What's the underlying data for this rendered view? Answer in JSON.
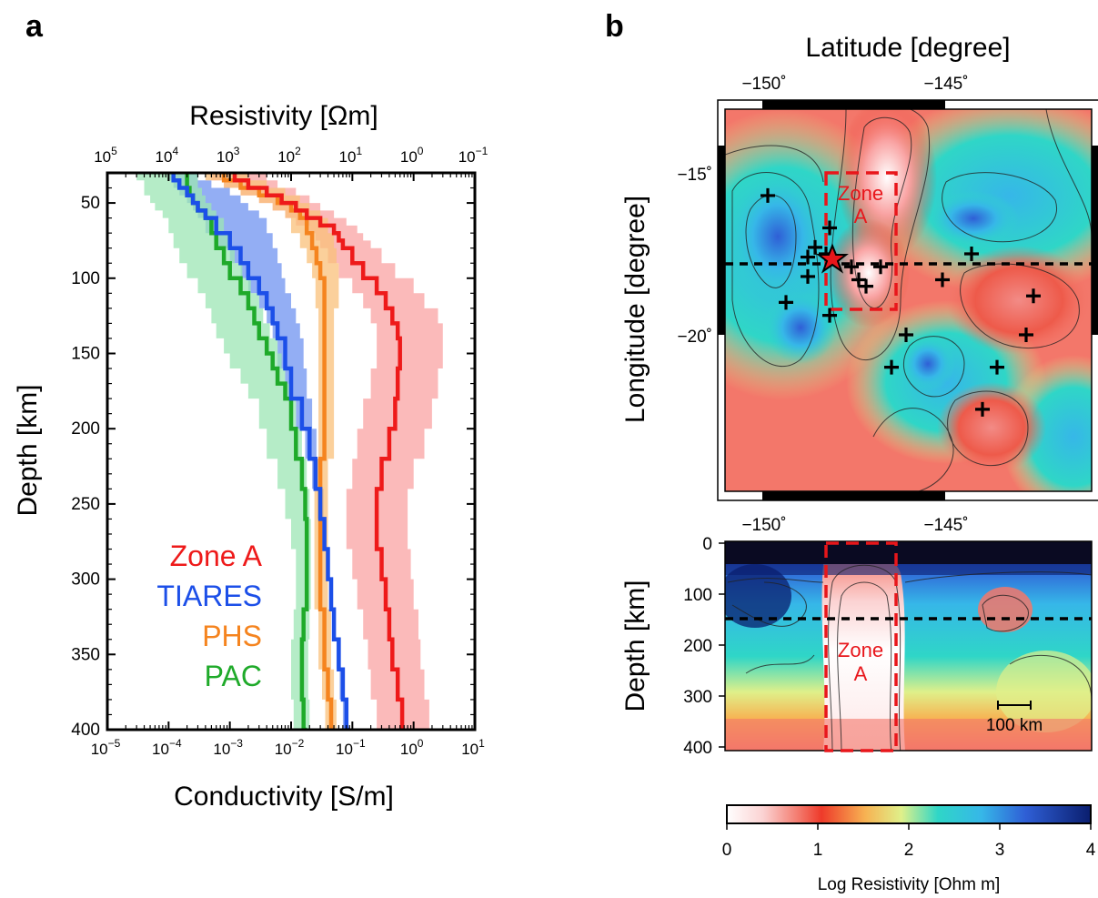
{
  "panels": {
    "a": "a",
    "b": "b"
  },
  "chart_data": [
    {
      "type": "line",
      "panel": "a",
      "xlabel_top": "Resistivity [Ωm]",
      "xlabel_bottom": "Conductivity [S/m]",
      "ylabel": "Depth [km]",
      "x_scale": "log",
      "xlim": [
        1e-05,
        10
      ],
      "ylim": [
        400,
        30
      ],
      "y_ticks": [
        "50",
        "100",
        "150",
        "200",
        "250",
        "300",
        "350",
        "400"
      ],
      "bottom_ticks": [
        {
          "b": "10",
          "e": "−5"
        },
        {
          "b": "10",
          "e": "−4"
        },
        {
          "b": "10",
          "e": "−3"
        },
        {
          "b": "10",
          "e": "−2"
        },
        {
          "b": "10",
          "e": "−1"
        },
        {
          "b": "10",
          "e": "0"
        },
        {
          "b": "10",
          "e": "1"
        }
      ],
      "top_ticks": [
        {
          "b": "10",
          "e": "5"
        },
        {
          "b": "10",
          "e": "4"
        },
        {
          "b": "10",
          "e": "3"
        },
        {
          "b": "10",
          "e": "2"
        },
        {
          "b": "10",
          "e": "1"
        },
        {
          "b": "10",
          "e": "0"
        },
        {
          "b": "10",
          "e": "−1"
        }
      ],
      "series": [
        {
          "name": "Zone A",
          "color": "#ee1a1a",
          "band": "#f9a3a3",
          "depth": [
            30,
            35,
            40,
            45,
            50,
            55,
            60,
            65,
            70,
            75,
            80,
            90,
            100,
            110,
            120,
            130,
            140,
            160,
            180,
            200,
            220,
            240,
            260,
            280,
            300,
            320,
            340,
            360,
            380,
            400
          ],
          "conductivity": [
            0.0012,
            0.002,
            0.004,
            0.007,
            0.012,
            0.018,
            0.03,
            0.05,
            0.06,
            0.07,
            0.1,
            0.15,
            0.25,
            0.35,
            0.45,
            0.55,
            0.6,
            0.55,
            0.5,
            0.4,
            0.3,
            0.25,
            0.25,
            0.3,
            0.35,
            0.4,
            0.45,
            0.55,
            0.65,
            0.7
          ],
          "band_lo": [
            0.0005,
            0.0008,
            0.0015,
            0.003,
            0.005,
            0.008,
            0.012,
            0.02,
            0.025,
            0.03,
            0.04,
            0.06,
            0.1,
            0.15,
            0.2,
            0.25,
            0.25,
            0.2,
            0.15,
            0.12,
            0.1,
            0.08,
            0.08,
            0.1,
            0.12,
            0.15,
            0.18,
            0.2,
            0.25,
            0.3
          ],
          "band_hi": [
            0.004,
            0.006,
            0.012,
            0.02,
            0.03,
            0.05,
            0.08,
            0.12,
            0.15,
            0.2,
            0.3,
            0.5,
            1.0,
            1.5,
            2.5,
            3.0,
            3.0,
            2.5,
            2.0,
            1.5,
            1.0,
            0.8,
            0.8,
            0.9,
            1.0,
            1.2,
            1.3,
            1.5,
            1.8,
            2.0
          ]
        },
        {
          "name": "TIARES",
          "color": "#1c4fe8",
          "band": "#6f93f0",
          "depth": [
            30,
            35,
            40,
            45,
            50,
            55,
            60,
            70,
            80,
            90,
            100,
            110,
            120,
            130,
            140,
            160,
            180,
            200,
            220,
            240,
            260,
            280,
            300,
            320,
            340,
            360,
            380,
            400
          ],
          "conductivity": [
            0.00012,
            0.00015,
            0.0002,
            0.00025,
            0.0003,
            0.0004,
            0.0006,
            0.001,
            0.0015,
            0.002,
            0.003,
            0.004,
            0.005,
            0.006,
            0.008,
            0.01,
            0.015,
            0.02,
            0.025,
            0.03,
            0.035,
            0.04,
            0.045,
            0.05,
            0.06,
            0.07,
            0.08,
            0.09
          ],
          "band_lo": [
            0.0001,
            0.00012,
            0.00015,
            0.0002,
            0.00025,
            0.0003,
            0.0004,
            0.0006,
            0.001,
            0.0015,
            0.002,
            0.003,
            0.004,
            0.005,
            0.006,
            0.008,
            0.012,
            0.017,
            0.022,
            0.027,
            0.032,
            0.037,
            0.042,
            0.047,
            0.055,
            0.062,
            0.07,
            0.08
          ],
          "band_hi": [
            0.0003,
            0.0005,
            0.001,
            0.0015,
            0.002,
            0.003,
            0.004,
            0.005,
            0.006,
            0.007,
            0.008,
            0.01,
            0.012,
            0.014,
            0.016,
            0.018,
            0.022,
            0.026,
            0.03,
            0.034,
            0.038,
            0.042,
            0.047,
            0.052,
            0.062,
            0.072,
            0.082,
            0.095
          ]
        },
        {
          "name": "PHS",
          "color": "#f5841f",
          "band": "#f9c07a",
          "depth": [
            30,
            35,
            40,
            45,
            50,
            55,
            60,
            70,
            80,
            90,
            100,
            120,
            140,
            160,
            180,
            200,
            220,
            240,
            260,
            280,
            300,
            320,
            340,
            360,
            380,
            400
          ],
          "conductivity": [
            0.0008,
            0.0015,
            0.003,
            0.006,
            0.01,
            0.014,
            0.018,
            0.022,
            0.026,
            0.03,
            0.035,
            0.035,
            0.035,
            0.035,
            0.035,
            0.035,
            0.03,
            0.03,
            0.03,
            0.03,
            0.03,
            0.035,
            0.035,
            0.04,
            0.045,
            0.05
          ],
          "band_lo": [
            0.0004,
            0.0008,
            0.0015,
            0.003,
            0.005,
            0.008,
            0.01,
            0.014,
            0.018,
            0.022,
            0.025,
            0.028,
            0.028,
            0.028,
            0.028,
            0.028,
            0.024,
            0.024,
            0.024,
            0.024,
            0.024,
            0.028,
            0.028,
            0.032,
            0.036,
            0.04
          ],
          "band_hi": [
            0.002,
            0.004,
            0.008,
            0.014,
            0.02,
            0.03,
            0.04,
            0.05,
            0.055,
            0.06,
            0.06,
            0.05,
            0.05,
            0.05,
            0.05,
            0.05,
            0.04,
            0.04,
            0.04,
            0.04,
            0.04,
            0.045,
            0.045,
            0.05,
            0.055,
            0.06
          ]
        },
        {
          "name": "PAC",
          "color": "#1faa2a",
          "band": "#9ce6b4",
          "depth": [
            30,
            35,
            40,
            45,
            50,
            55,
            60,
            70,
            80,
            90,
            100,
            110,
            120,
            130,
            140,
            150,
            160,
            170,
            180,
            200,
            220,
            240,
            260,
            280,
            300,
            320,
            340,
            360,
            380,
            400
          ],
          "conductivity": [
            0.0002,
            0.0002,
            0.00022,
            0.00025,
            0.0003,
            0.0004,
            0.0005,
            0.0006,
            0.0008,
            0.001,
            0.0015,
            0.002,
            0.0025,
            0.003,
            0.004,
            0.005,
            0.006,
            0.008,
            0.01,
            0.012,
            0.015,
            0.017,
            0.018,
            0.018,
            0.018,
            0.016,
            0.015,
            0.015,
            0.016,
            0.018
          ],
          "band_lo": [
            3e-05,
            4e-05,
            4e-05,
            5e-05,
            6e-05,
            8e-05,
            0.0001,
            0.00012,
            0.00015,
            0.0002,
            0.0003,
            0.0004,
            0.0005,
            0.0006,
            0.0008,
            0.001,
            0.0015,
            0.002,
            0.003,
            0.004,
            0.006,
            0.008,
            0.01,
            0.012,
            0.012,
            0.011,
            0.01,
            0.01,
            0.011,
            0.012
          ],
          "band_hi": [
            0.0003,
            0.0003,
            0.00035,
            0.0004,
            0.0005,
            0.0006,
            0.0008,
            0.001,
            0.0012,
            0.0016,
            0.0022,
            0.003,
            0.0035,
            0.0045,
            0.006,
            0.007,
            0.008,
            0.01,
            0.012,
            0.015,
            0.018,
            0.02,
            0.021,
            0.021,
            0.021,
            0.02,
            0.019,
            0.019,
            0.02,
            0.022
          ]
        }
      ]
    },
    {
      "type": "heatmap",
      "panel": "b-map",
      "xlabel": "Latitude [degree]",
      "ylabel": "Longitude [degree]",
      "x_ticks": [
        "−150˚",
        "−145˚"
      ],
      "y_ticks": [
        "−15˚",
        "−20˚"
      ],
      "zone_label": [
        "Zone",
        "A"
      ],
      "stations": [
        [
          -149.9,
          -15.7
        ],
        [
          -148.2,
          -16.7
        ],
        [
          -148.6,
          -17.3
        ],
        [
          -148.8,
          -17.6
        ],
        [
          -148.3,
          -17.5
        ],
        [
          -147.6,
          -17.9
        ],
        [
          -147.4,
          -18.3
        ],
        [
          -147.2,
          -18.5
        ],
        [
          -148.8,
          -18.2
        ],
        [
          -149.4,
          -19.0
        ],
        [
          -148.2,
          -19.4
        ],
        [
          -146.8,
          -17.9
        ],
        [
          -146.1,
          -20.0
        ],
        [
          -146.5,
          -21.0
        ],
        [
          -145.1,
          -18.3
        ],
        [
          -144.3,
          -17.5
        ],
        [
          -142.6,
          -18.8
        ],
        [
          -142.8,
          -20.0
        ],
        [
          -143.6,
          -21.0
        ],
        [
          -144.0,
          -22.3
        ]
      ],
      "star": [
        -148.0,
        -17.9
      ]
    },
    {
      "type": "heatmap",
      "panel": "b-section",
      "ylabel": "Depth [km]",
      "x_ticks": [
        "−150˚",
        "−145˚"
      ],
      "y_ticks": [
        "0",
        "100",
        "200",
        "300",
        "400"
      ],
      "zone_label": [
        "Zone",
        "A"
      ],
      "scale_bar": "100 km"
    }
  ],
  "colorbar": {
    "label": "Log Resistivity [Ohm m]",
    "ticks": [
      "0",
      "1",
      "2",
      "3",
      "4"
    ],
    "range": [
      0,
      4
    ],
    "stops": [
      "#ffffff",
      "#f9a3a3",
      "#ee3a2a",
      "#f7b252",
      "#dff08a",
      "#2fd6c7",
      "#36b7e8",
      "#2f5fd6",
      "#0a1e6e"
    ]
  }
}
